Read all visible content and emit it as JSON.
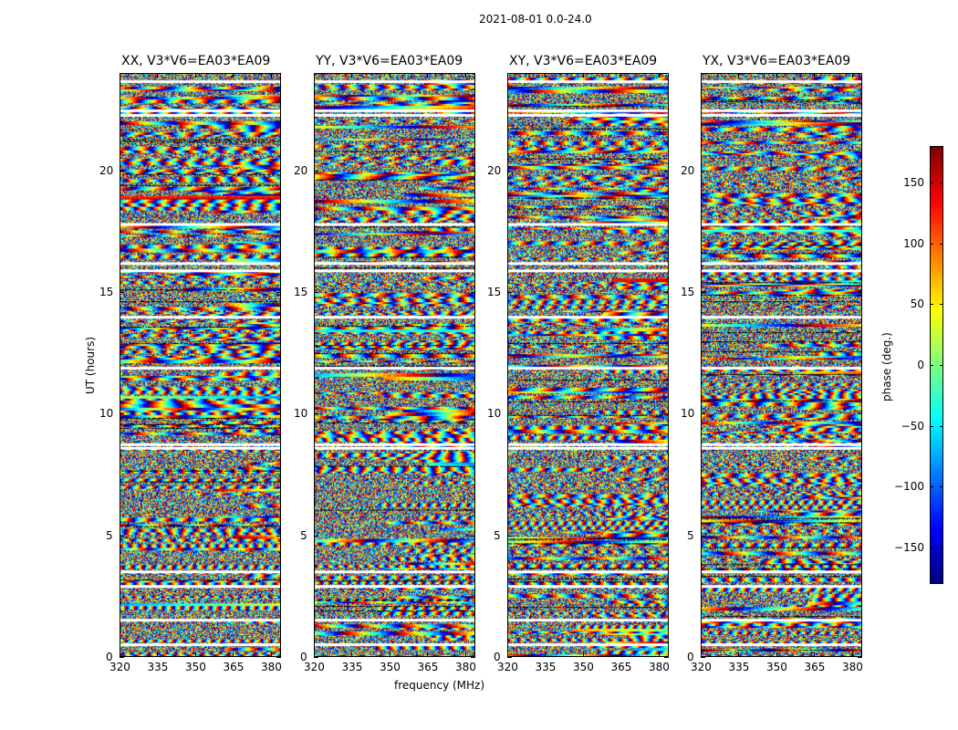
{
  "suptitle": "2021-08-01 0.0-24.0",
  "chart_data": {
    "type": "heatmap",
    "title": "2021-08-01 0.0-24.0",
    "xlabel": "frequency (MHz)",
    "ylabel": "UT (hours)",
    "xlim": [
      320,
      384
    ],
    "ylim": [
      0,
      24
    ],
    "xticks": [
      "320",
      "335",
      "350",
      "365",
      "380"
    ],
    "xtick_values": [
      320,
      335,
      350,
      365,
      380
    ],
    "yticks": [
      "0",
      "5",
      "10",
      "15",
      "20"
    ],
    "ytick_values": [
      0,
      5,
      10,
      15,
      20
    ],
    "panels": [
      {
        "title": "XX, V3*V6=EA03*EA09"
      },
      {
        "title": "YY, V3*V6=EA03*EA09"
      },
      {
        "title": "XY, V3*V6=EA03*EA09"
      },
      {
        "title": "YX, V3*V6=EA03*EA09"
      }
    ],
    "flagged_hours": [
      0.5,
      1.5,
      2.9,
      3.5,
      8.6,
      8.75,
      11.9,
      14.0,
      15.9,
      16.2,
      17.8,
      22.3,
      22.5,
      23.7
    ],
    "colorbar": {
      "label": "phase (deg.)",
      "range": [
        -180,
        180
      ],
      "ticks": [
        "150",
        "100",
        "50",
        "0",
        "−50",
        "−100",
        "−150"
      ],
      "tick_values": [
        150,
        100,
        50,
        0,
        -50,
        -100,
        -150
      ],
      "colormap": "jet"
    }
  }
}
